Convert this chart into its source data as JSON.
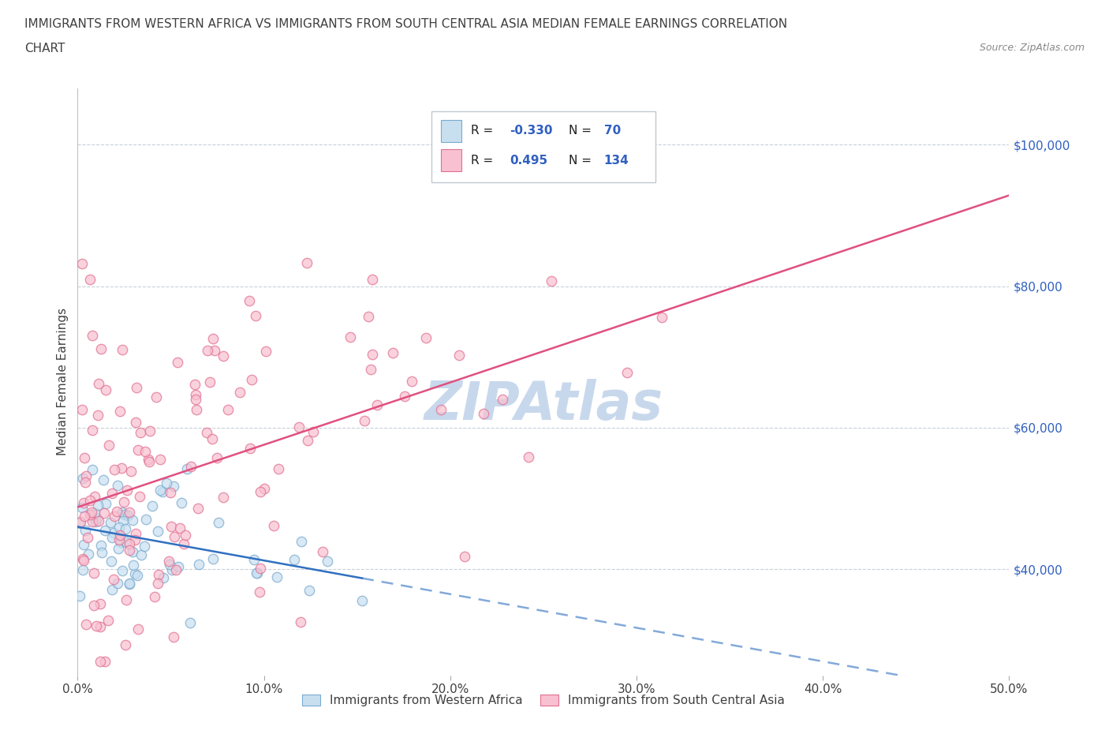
{
  "title_line1": "IMMIGRANTS FROM WESTERN AFRICA VS IMMIGRANTS FROM SOUTH CENTRAL ASIA MEDIAN FEMALE EARNINGS CORRELATION",
  "title_line2": "CHART",
  "source": "Source: ZipAtlas.com",
  "ylabel": "Median Female Earnings",
  "xmin": 0.0,
  "xmax": 0.5,
  "ymin": 25000,
  "ymax": 108000,
  "yticks": [
    40000,
    60000,
    80000,
    100000
  ],
  "ytick_labels": [
    "$40,000",
    "$60,000",
    "$80,000",
    "$100,000"
  ],
  "xticks": [
    0.0,
    0.1,
    0.2,
    0.3,
    0.4,
    0.5
  ],
  "xtick_labels": [
    "0.0%",
    "10.0%",
    "20.0%",
    "30.0%",
    "40.0%",
    "50.0%"
  ],
  "series1_label": "Immigrants from Western Africa",
  "series2_label": "Immigrants from South Central Asia",
  "series1_dot_facecolor": "#c8dff0",
  "series1_dot_edgecolor": "#7aaacf",
  "series2_dot_facecolor": "#f8c0d0",
  "series2_dot_edgecolor": "#e07090",
  "series1_line_color": "#3070c0",
  "series2_line_color": "#e05080",
  "R1": -0.33,
  "N1": 70,
  "R2": 0.495,
  "N2": 134,
  "legend_R_color": "#3060c0",
  "legend_N_color": "#3060c0",
  "title_color": "#404040",
  "axis_tick_color": "#3060c0",
  "watermark": "ZIPAtlas",
  "watermark_color": "#c8d8ec",
  "grid_color": "#c8d0d8",
  "background_color": "#ffffff"
}
